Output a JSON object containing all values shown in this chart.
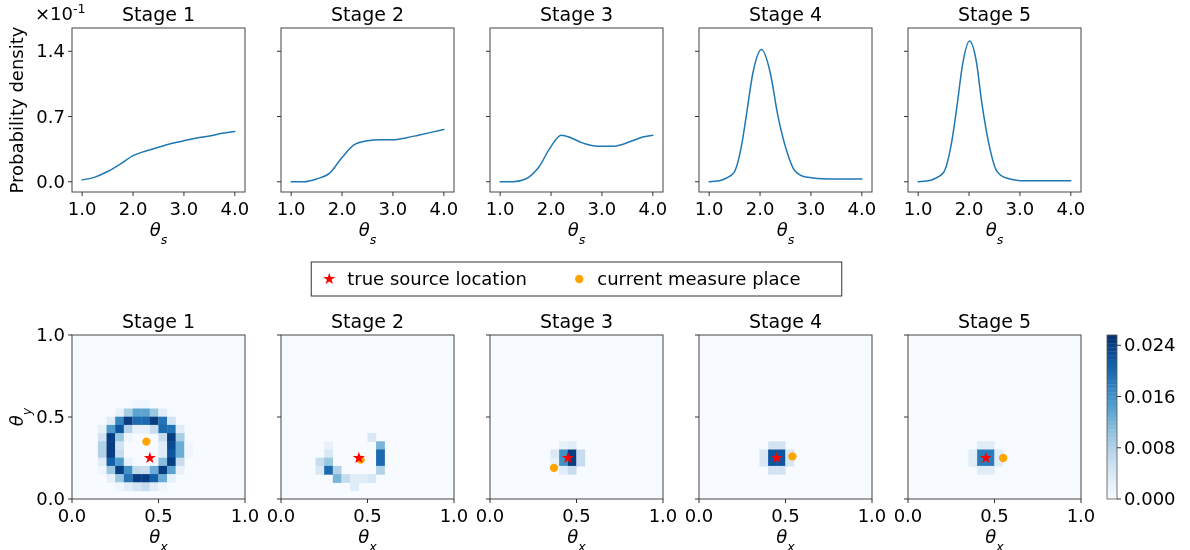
{
  "chart_data": [
    {
      "type": "line",
      "title": "Stage 1",
      "xlabel": "θ$_{s}$",
      "ylabel": "Probability density",
      "annotations": [
        "×10$^{-1}$"
      ],
      "xlim": [
        0.8,
        4.2
      ],
      "ylim": [
        -0.11,
        1.65
      ],
      "xticks": [
        {
          "value": 1,
          "label": "1.0"
        },
        {
          "value": 2,
          "label": "2.0"
        },
        {
          "value": 3,
          "label": "3.0"
        },
        {
          "value": 4,
          "label": "4.0"
        }
      ],
      "yticks": [
        {
          "value": 0,
          "label": "0.0"
        },
        {
          "value": 0.7,
          "label": "0.7"
        },
        {
          "value": 1.4,
          "label": "1.4"
        }
      ],
      "series": [
        {
          "color": "#1f77b4",
          "x": [
            1.0,
            1.25,
            1.5,
            1.75,
            2.0,
            2.25,
            2.5,
            2.75,
            3.0,
            3.25,
            3.5,
            3.75,
            4.0
          ],
          "values": [
            0.02,
            0.05,
            0.11,
            0.19,
            0.28,
            0.33,
            0.37,
            0.41,
            0.44,
            0.47,
            0.49,
            0.52,
            0.54
          ]
        }
      ]
    },
    {
      "type": "line",
      "title": "Stage 2",
      "xlabel": "θ$_{s}$",
      "tick_labels": "x",
      "xlim": [
        0.8,
        4.2
      ],
      "ylim": [
        -0.11,
        1.65
      ],
      "xticks": [
        {
          "value": 1,
          "label": "1.0"
        },
        {
          "value": 2,
          "label": "2.0"
        },
        {
          "value": 3,
          "label": "3.0"
        },
        {
          "value": 4,
          "label": "4.0"
        }
      ],
      "yticks": [
        {
          "value": 0,
          "label": null
        },
        {
          "value": 0.7,
          "label": null
        },
        {
          "value": 1.4,
          "label": null
        }
      ],
      "series": [
        {
          "color": "#1f77b4",
          "x": [
            1.0,
            1.25,
            1.5,
            1.75,
            2.0,
            2.25,
            2.5,
            2.75,
            3.0,
            3.25,
            3.5,
            3.75,
            4.0
          ],
          "values": [
            0,
            0,
            0.03,
            0.09,
            0.26,
            0.4,
            0.44,
            0.45,
            0.45,
            0.47,
            0.5,
            0.53,
            0.56
          ]
        }
      ]
    },
    {
      "type": "line",
      "title": "Stage 3",
      "xlabel": "θ$_{s}$",
      "tick_labels": "x",
      "xlim": [
        0.8,
        4.2
      ],
      "ylim": [
        -0.11,
        1.65
      ],
      "xticks": [
        {
          "value": 1,
          "label": "1.0"
        },
        {
          "value": 2,
          "label": "2.0"
        },
        {
          "value": 3,
          "label": "3.0"
        },
        {
          "value": 4,
          "label": "4.0"
        }
      ],
      "yticks": [
        {
          "value": 0,
          "label": null
        },
        {
          "value": 0.7,
          "label": null
        },
        {
          "value": 1.4,
          "label": null
        }
      ],
      "series": [
        {
          "color": "#1f77b4",
          "x": [
            1.0,
            1.25,
            1.5,
            1.75,
            2.0,
            2.2,
            2.4,
            2.6,
            2.8,
            3.0,
            3.2,
            3.4,
            3.6,
            3.8,
            4.0
          ],
          "values": [
            0,
            0,
            0.03,
            0.15,
            0.38,
            0.5,
            0.47,
            0.42,
            0.39,
            0.38,
            0.38,
            0.4,
            0.44,
            0.48,
            0.5
          ]
        }
      ]
    },
    {
      "type": "line",
      "title": "Stage 4",
      "xlabel": "θ$_{s}$",
      "tick_labels": "x",
      "xlim": [
        0.8,
        4.2
      ],
      "ylim": [
        -0.11,
        1.65
      ],
      "xticks": [
        {
          "value": 1,
          "label": "1.0"
        },
        {
          "value": 2,
          "label": "2.0"
        },
        {
          "value": 3,
          "label": "3.0"
        },
        {
          "value": 4,
          "label": "4.0"
        }
      ],
      "yticks": [
        {
          "value": 0,
          "label": null
        },
        {
          "value": 0.7,
          "label": null
        },
        {
          "value": 1.4,
          "label": null
        }
      ],
      "series": [
        {
          "color": "#1f77b4",
          "x": [
            1.0,
            1.2,
            1.34,
            1.49,
            1.64,
            1.73,
            1.86,
            2.03,
            2.2,
            2.35,
            2.53,
            2.68,
            2.9,
            3.35,
            4.0
          ],
          "values": [
            0,
            0.01,
            0.04,
            0.1,
            0.4,
            0.71,
            1.17,
            1.42,
            1.17,
            0.71,
            0.32,
            0.12,
            0.05,
            0.03,
            0.03
          ]
        }
      ]
    },
    {
      "type": "line",
      "title": "Stage 5",
      "xlabel": "θ$_{s}$",
      "tick_labels": "x",
      "xlim": [
        0.8,
        4.2
      ],
      "ylim": [
        -0.11,
        1.65
      ],
      "xticks": [
        {
          "value": 1,
          "label": "1.0"
        },
        {
          "value": 2,
          "label": "2.0"
        },
        {
          "value": 3,
          "label": "3.0"
        },
        {
          "value": 4,
          "label": "4.0"
        }
      ],
      "yticks": [
        {
          "value": 0,
          "label": null
        },
        {
          "value": 0.7,
          "label": null
        },
        {
          "value": 1.4,
          "label": null
        }
      ],
      "series": [
        {
          "color": "#1f77b4",
          "x": [
            1.0,
            1.2,
            1.31,
            1.5,
            1.65,
            1.76,
            1.87,
            2.01,
            2.14,
            2.25,
            2.4,
            2.54,
            2.73,
            3.1,
            4.0
          ],
          "values": [
            0,
            0.01,
            0.03,
            0.1,
            0.4,
            0.8,
            1.25,
            1.51,
            1.3,
            0.85,
            0.38,
            0.12,
            0.04,
            0.01,
            0.01
          ]
        }
      ]
    },
    {
      "type": "scatter",
      "title": "Stage 1",
      "xlabel": "θ$_{x}$",
      "ylabel": "θ$_{y}$",
      "legend": "top",
      "xlim": [
        0,
        1
      ],
      "ylim": [
        0,
        1
      ],
      "xticks": [
        {
          "value": 0,
          "label": "0.0"
        },
        {
          "value": 0.5,
          "label": "0.5"
        },
        {
          "value": 1,
          "label": "1.0"
        }
      ],
      "yticks": [
        {
          "value": 0,
          "label": "0.0"
        },
        {
          "value": 0.5,
          "label": "0.5"
        },
        {
          "value": 1,
          "label": "1.0"
        }
      ],
      "series": [
        {
          "marker": "square",
          "x": [
            0.375,
            0.425,
            0.275,
            0.325,
            0.375,
            0.425,
            0.475,
            0.525,
            0.225,
            0.275,
            0.325,
            0.375,
            0.425,
            0.475,
            0.525,
            0.575,
            0.175,
            0.225,
            0.275,
            0.325,
            0.375,
            0.425,
            0.475,
            0.525,
            0.575,
            0.625,
            0.175,
            0.225,
            0.275,
            0.325,
            0.525,
            0.575,
            0.625,
            0.175,
            0.225,
            0.275,
            0.525,
            0.575,
            0.625,
            0.675,
            0.175,
            0.225,
            0.275,
            0.525,
            0.575,
            0.625,
            0.675,
            0.175,
            0.225,
            0.275,
            0.325,
            0.475,
            0.525,
            0.575,
            0.625,
            0.175,
            0.225,
            0.275,
            0.325,
            0.375,
            0.425,
            0.475,
            0.525,
            0.575,
            0.625,
            0.225,
            0.275,
            0.325,
            0.375,
            0.425,
            0.475,
            0.525,
            0.575,
            0.275,
            0.325,
            0.375,
            0.425,
            0.475,
            0.525
          ],
          "values": [
            0.575,
            0.575,
            0.525,
            0.525,
            0.525,
            0.525,
            0.525,
            0.525,
            0.475,
            0.475,
            0.475,
            0.475,
            0.475,
            0.475,
            0.475,
            0.475,
            0.425,
            0.425,
            0.425,
            0.425,
            0.425,
            0.425,
            0.425,
            0.425,
            0.425,
            0.425,
            0.375,
            0.375,
            0.375,
            0.375,
            0.375,
            0.375,
            0.375,
            0.325,
            0.325,
            0.325,
            0.325,
            0.325,
            0.325,
            0.325,
            0.275,
            0.275,
            0.275,
            0.275,
            0.275,
            0.275,
            0.275,
            0.225,
            0.225,
            0.225,
            0.225,
            0.225,
            0.225,
            0.225,
            0.225,
            0.175,
            0.175,
            0.175,
            0.175,
            0.175,
            0.175,
            0.175,
            0.175,
            0.175,
            0.175,
            0.125,
            0.125,
            0.125,
            0.125,
            0.125,
            0.125,
            0.125,
            0.125,
            0.075,
            0.075,
            0.075,
            0.075,
            0.075,
            0.075
          ],
          "colors": [
            "#f0f6fd",
            "#f0f6fd",
            "#e8f1fa",
            "#a6cee4",
            "#5ba3d0",
            "#5ba3d0",
            "#9ac8e0",
            "#e0ecf8",
            "#e0ecf8",
            "#3787c0",
            "#083e81",
            "#1c6aaf",
            "#1c6aaf",
            "#083e81",
            "#2373b6",
            "#d3e3f3",
            "#e8f1fa",
            "#4e9acb",
            "#0c56a0",
            "#b2d2e8",
            "#e8f1fa",
            "#e8f1fa",
            "#c8dcf0",
            "#1c6aaf",
            "#2373b6",
            "#e0ecf8",
            "#d3e3f3",
            "#083e81",
            "#9ac8e0",
            "#f0f6fd",
            "#c8dcf0",
            "#083e81",
            "#a6cee4",
            "#b2d2e8",
            "#083e81",
            "#d3e3f3",
            "#e0ecf8",
            "#084c94",
            "#69acd5",
            "#f0f6fd",
            "#b2d2e8",
            "#083e81",
            "#c8dcf0",
            "#e0ecf8",
            "#0c56a0",
            "#69acd5",
            "#f0f6fd",
            "#e0ecf8",
            "#1460a8",
            "#4e9acb",
            "#e8f1fa",
            "#f0f6fd",
            "#88bedc",
            "#083e81",
            "#c8dcf0",
            "#f0f6fd",
            "#9ac8e0",
            "#083e81",
            "#4292c6",
            "#c1d9ed",
            "#c8dcf0",
            "#69acd5",
            "#083e81",
            "#5ba3d0",
            "#e8f1fa",
            "#e8f1fa",
            "#9ac8e0",
            "#2373b6",
            "#083e81",
            "#083e81",
            "#1460a8",
            "#69acd5",
            "#e8f1fa",
            "#f0f6fd",
            "#e0ecf8",
            "#d3e3f3",
            "#c8dcf0",
            "#e0ecf8",
            "#f0f6fd"
          ]
        },
        {
          "name": "true source location",
          "color": "#ff0000",
          "marker": "star",
          "x": [
            0.45
          ],
          "values": [
            0.25
          ]
        },
        {
          "name": "current measure place",
          "color": "#ffa500",
          "marker": "circle",
          "x": [
            0.43
          ],
          "values": [
            0.35
          ]
        }
      ]
    },
    {
      "type": "scatter",
      "title": "Stage 2",
      "xlabel": "θ$_{x}$",
      "tick_labels": "x",
      "xlim": [
        0,
        1
      ],
      "ylim": [
        0,
        1
      ],
      "xticks": [
        {
          "value": 0,
          "label": "0.0"
        },
        {
          "value": 0.5,
          "label": "0.5"
        },
        {
          "value": 1,
          "label": "1.0"
        }
      ],
      "yticks": [
        {
          "value": 0,
          "label": null
        },
        {
          "value": 0.5,
          "label": null
        },
        {
          "value": 1,
          "label": null
        }
      ],
      "series": [
        {
          "marker": "square",
          "x": [
            0.525,
            0.275,
            0.575,
            0.275,
            0.575,
            0.225,
            0.275,
            0.575,
            0.225,
            0.275,
            0.325,
            0.575,
            0.325,
            0.375,
            0.425,
            0.475,
            0.525,
            0.425
          ],
          "values": [
            0.375,
            0.325,
            0.325,
            0.275,
            0.275,
            0.225,
            0.225,
            0.225,
            0.175,
            0.175,
            0.175,
            0.175,
            0.125,
            0.125,
            0.125,
            0.125,
            0.125,
            0.075
          ],
          "colors": [
            "#dae8f5",
            "#e8f1fa",
            "#78b5d9",
            "#dae8f5",
            "#1c6aaf",
            "#c8dcf0",
            "#9ac8e0",
            "#1c6aaf",
            "#dae8f5",
            "#1c6aaf",
            "#b2d2e8",
            "#b2d2e8",
            "#78b5d9",
            "#c8dcf0",
            "#e0ecf8",
            "#e0ecf8",
            "#dae8f5",
            "#e0ecf8"
          ]
        },
        {
          "color": "#ffa500",
          "marker": "circle",
          "x": [
            0.46
          ],
          "values": [
            0.24
          ]
        },
        {
          "color": "#ff0000",
          "marker": "star",
          "x": [
            0.45
          ],
          "values": [
            0.25
          ]
        }
      ]
    },
    {
      "type": "scatter",
      "title": "Stage 3",
      "xlabel": "θ$_{x}$",
      "tick_labels": "x",
      "xlim": [
        0,
        1
      ],
      "ylim": [
        0,
        1
      ],
      "xticks": [
        {
          "value": 0,
          "label": "0.0"
        },
        {
          "value": 0.5,
          "label": "0.5"
        },
        {
          "value": 1,
          "label": "1.0"
        }
      ],
      "yticks": [
        {
          "value": 0,
          "label": null
        },
        {
          "value": 0.5,
          "label": null
        },
        {
          "value": 1,
          "label": null
        }
      ],
      "series": [
        {
          "marker": "square",
          "x": [
            0.425,
            0.475,
            0.375,
            0.425,
            0.475,
            0.525,
            0.375,
            0.425,
            0.475,
            0.525,
            0.425,
            0.475
          ],
          "values": [
            0.325,
            0.325,
            0.275,
            0.275,
            0.275,
            0.275,
            0.225,
            0.225,
            0.225,
            0.225,
            0.175,
            0.175
          ],
          "colors": [
            "#e8f1fa",
            "#e0ecf8",
            "#dae8f5",
            "#4292c6",
            "#083e81",
            "#c8dcf0",
            "#e8f1fa",
            "#4292c6",
            "#083e81",
            "#c8dcf0",
            "#e0ecf8",
            "#c8dcf0"
          ]
        },
        {
          "color": "#ff0000",
          "marker": "star",
          "x": [
            0.45
          ],
          "values": [
            0.25
          ]
        },
        {
          "color": "#ffa500",
          "marker": "circle",
          "x": [
            0.37
          ],
          "values": [
            0.19
          ]
        }
      ]
    },
    {
      "type": "scatter",
      "title": "Stage 4",
      "xlabel": "θ$_{x}$",
      "tick_labels": "x",
      "xlim": [
        0,
        1
      ],
      "ylim": [
        0,
        1
      ],
      "xticks": [
        {
          "value": 0,
          "label": "0.0"
        },
        {
          "value": 0.5,
          "label": "0.5"
        },
        {
          "value": 1,
          "label": "1.0"
        }
      ],
      "yticks": [
        {
          "value": 0,
          "label": null
        },
        {
          "value": 0.5,
          "label": null
        },
        {
          "value": 1,
          "label": null
        }
      ],
      "series": [
        {
          "marker": "square",
          "x": [
            0.425,
            0.475,
            0.375,
            0.425,
            0.475,
            0.525,
            0.375,
            0.425,
            0.475,
            0.525,
            0.425,
            0.475
          ],
          "values": [
            0.325,
            0.325,
            0.275,
            0.275,
            0.275,
            0.275,
            0.225,
            0.225,
            0.225,
            0.225,
            0.175,
            0.175
          ],
          "colors": [
            "#d3e3f3",
            "#d3e3f3",
            "#dae8f5",
            "#0c56a0",
            "#0c56a0",
            "#dae8f5",
            "#dae8f5",
            "#0c56a0",
            "#0c56a0",
            "#dae8f5",
            "#d3e3f3",
            "#d3e3f3"
          ]
        },
        {
          "color": "#ff0000",
          "marker": "star",
          "x": [
            0.45
          ],
          "values": [
            0.25
          ]
        },
        {
          "color": "#ffa500",
          "marker": "circle",
          "x": [
            0.54
          ],
          "values": [
            0.26
          ]
        }
      ]
    },
    {
      "type": "scatter",
      "title": "Stage 5",
      "xlabel": "θ$_{x}$",
      "tick_labels": "x",
      "xlim": [
        0,
        1
      ],
      "ylim": [
        0,
        1
      ],
      "clim": [
        0,
        0.0256
      ],
      "cticks": [
        {
          "value": 0,
          "label": "0.000"
        },
        {
          "value": 0.008,
          "label": "0.008"
        },
        {
          "value": 0.016,
          "label": "0.016"
        },
        {
          "value": 0.024,
          "label": "0.024"
        }
      ],
      "xticks": [
        {
          "value": 0,
          "label": "0.0"
        },
        {
          "value": 0.5,
          "label": "0.5"
        },
        {
          "value": 1,
          "label": "1.0"
        }
      ],
      "yticks": [
        {
          "value": 0,
          "label": null
        },
        {
          "value": 0.5,
          "label": null
        },
        {
          "value": 1,
          "label": null
        }
      ],
      "series": [
        {
          "marker": "square",
          "x": [
            0.425,
            0.475,
            0.375,
            0.425,
            0.475,
            0.525,
            0.375,
            0.425,
            0.475,
            0.525,
            0.425,
            0.475
          ],
          "values": [
            0.325,
            0.325,
            0.275,
            0.275,
            0.275,
            0.275,
            0.225,
            0.225,
            0.225,
            0.225,
            0.175,
            0.175
          ],
          "colors": [
            "#e0ecf8",
            "#e0ecf8",
            "#e0ecf8",
            "#2c7cba",
            "#2c7cba",
            "#e0ecf8",
            "#e0ecf8",
            "#2c7cba",
            "#2c7cba",
            "#e0ecf8",
            "#e0ecf8",
            "#e0ecf8"
          ]
        },
        {
          "color": "#ff0000",
          "marker": "star",
          "x": [
            0.45
          ],
          "values": [
            0.25
          ]
        },
        {
          "color": "#ffa500",
          "marker": "circle",
          "x": [
            0.55
          ],
          "values": [
            0.25
          ]
        }
      ]
    }
  ]
}
